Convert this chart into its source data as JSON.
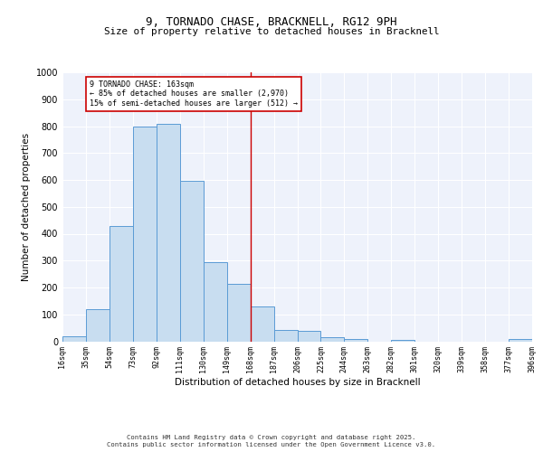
{
  "title_line1": "9, TORNADO CHASE, BRACKNELL, RG12 9PH",
  "title_line2": "Size of property relative to detached houses in Bracknell",
  "xlabel": "Distribution of detached houses by size in Bracknell",
  "ylabel": "Number of detached properties",
  "tick_labels": [
    "16sqm",
    "35sqm",
    "54sqm",
    "73sqm",
    "92sqm",
    "111sqm",
    "130sqm",
    "149sqm",
    "168sqm",
    "187sqm",
    "206sqm",
    "225sqm",
    "244sqm",
    "263sqm",
    "282sqm",
    "301sqm",
    "320sqm",
    "339sqm",
    "358sqm",
    "377sqm",
    "396sqm"
  ],
  "bar_values": [
    20,
    120,
    430,
    800,
    810,
    595,
    295,
    215,
    130,
    43,
    40,
    15,
    10,
    0,
    5,
    0,
    0,
    0,
    0,
    10
  ],
  "bar_color": "#c8ddf0",
  "bar_edge_color": "#5b9bd5",
  "ylim": [
    0,
    1000
  ],
  "yticks": [
    0,
    100,
    200,
    300,
    400,
    500,
    600,
    700,
    800,
    900,
    1000
  ],
  "vline_color": "#cc0000",
  "annotation_title": "9 TORNADO CHASE: 163sqm",
  "annotation_line2": "← 85% of detached houses are smaller (2,970)",
  "annotation_line3": "15% of semi-detached houses are larger (512) →",
  "footer_line1": "Contains HM Land Registry data © Crown copyright and database right 2025.",
  "footer_line2": "Contains public sector information licensed under the Open Government Licence v3.0.",
  "bg_color": "#eef2fb",
  "grid_color": "#ffffff"
}
